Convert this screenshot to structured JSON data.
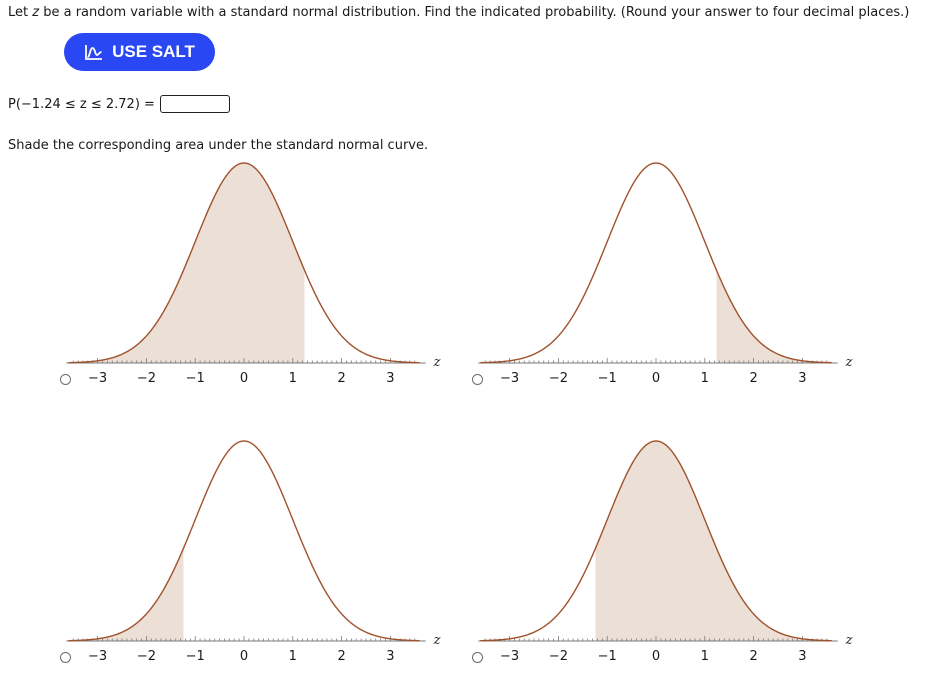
{
  "question": {
    "prompt_before": "Let ",
    "prompt_var": "z",
    "prompt_after": " be a random variable with a standard normal distribution. Find the indicated probability. (Round your answer to four decimal places.)"
  },
  "salt_button": {
    "label": "USE SALT",
    "icon": "salt-graph-icon",
    "color": "#2947f2"
  },
  "probability": {
    "expression": "P(−1.24 ≤ z ≤ 2.72) =",
    "answer_value": ""
  },
  "shade_instruction": "Shade the corresponding area under the standard normal curve.",
  "axis_variable": "z",
  "colors": {
    "curve": "#a0522d",
    "shade": "#ecdfd6",
    "axis": "#7a7a7a"
  },
  "chart_data": [
    {
      "type": "area",
      "x_range": [
        -3.6,
        3.6
      ],
      "xticks": [
        "−3",
        "−2",
        "−1",
        "0",
        "1",
        "2",
        "3"
      ],
      "tick_values": [
        -3,
        -2,
        -1,
        0,
        1,
        2,
        3
      ],
      "shade": [
        [
          -4,
          1.24
        ]
      ],
      "xlabel": "z"
    },
    {
      "type": "area",
      "x_range": [
        -3.6,
        3.6
      ],
      "xticks": [
        "−3",
        "−2",
        "−1",
        "0",
        "1",
        "2",
        "3"
      ],
      "tick_values": [
        -3,
        -2,
        -1,
        0,
        1,
        2,
        3
      ],
      "shade": [
        [
          1.24,
          4
        ]
      ],
      "xlabel": "z"
    },
    {
      "type": "area",
      "x_range": [
        -3.6,
        3.6
      ],
      "xticks": [
        "−3",
        "−2",
        "−1",
        "0",
        "1",
        "2",
        "3"
      ],
      "tick_values": [
        -3,
        -2,
        -1,
        0,
        1,
        2,
        3
      ],
      "shade": [
        [
          -4,
          -1.24
        ]
      ],
      "xlabel": "z"
    },
    {
      "type": "area",
      "x_range": [
        -3.6,
        3.6
      ],
      "xticks": [
        "−3",
        "−2",
        "−1",
        "0",
        "1",
        "2",
        "3"
      ],
      "tick_values": [
        -3,
        -2,
        -1,
        0,
        1,
        2,
        3
      ],
      "shade": [
        [
          -1.24,
          4
        ]
      ],
      "xlabel": "z"
    }
  ]
}
